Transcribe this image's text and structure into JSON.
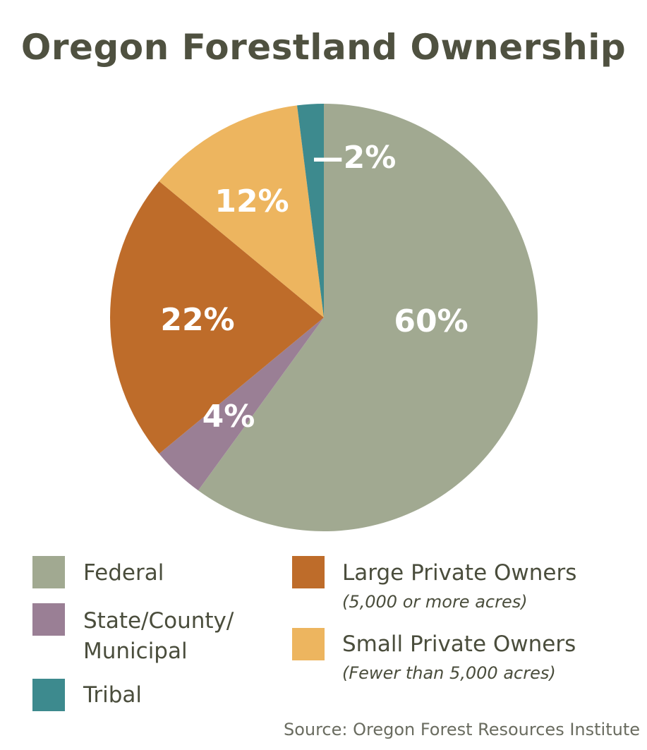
{
  "chart_data": {
    "type": "pie",
    "title": "Oregon Forestland Ownership",
    "slices": [
      {
        "name": "Federal",
        "value": 60,
        "label": "60%",
        "color": "#a1a991"
      },
      {
        "name": "State/County/ Municipal",
        "value": 4,
        "label": "4%",
        "color": "#9a7f95"
      },
      {
        "name": "Large Private Owners",
        "note": "(5,000 or more acres)",
        "value": 22,
        "label": "22%",
        "color": "#be6c2a"
      },
      {
        "name": "Small Private Owners",
        "note": "(Fewer than 5,000 acres)",
        "value": 12,
        "label": "12%",
        "color": "#edb55f"
      },
      {
        "name": "Tribal",
        "value": 2,
        "label": "—2%",
        "color": "#3d8a8e"
      }
    ],
    "legend": {
      "federal": "Federal",
      "state_line1": "State/County/",
      "state_line2": "Municipal",
      "tribal": "Tribal",
      "large_private": "Large Private Owners",
      "large_private_note": "(5,000 or more acres)",
      "small_private": "Small Private Owners",
      "small_private_note": "(Fewer than 5,000 acres)"
    },
    "source": "Source: Oregon Forest Resources Institute"
  }
}
